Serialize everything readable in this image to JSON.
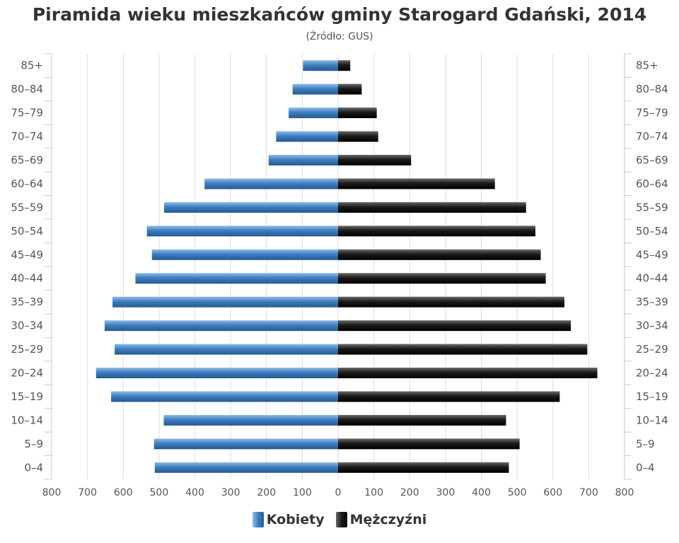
{
  "chart_data": {
    "type": "bar",
    "orientation": "horizontal-pyramid",
    "title": "Piramida wieku mieszkańców gminy Starogard Gdański, 2014",
    "subtitle": "(Źródło: GUS)",
    "categories": [
      "0–4",
      "5–9",
      "10–14",
      "15–19",
      "20–24",
      "25–29",
      "30–34",
      "35–39",
      "40–44",
      "45–49",
      "50–54",
      "55–59",
      "60–64",
      "65–69",
      "70–74",
      "75–79",
      "80–84",
      "85+"
    ],
    "series": [
      {
        "name": "Kobiety",
        "color": "#3e7fc1",
        "side": "left",
        "values": [
          512,
          514,
          487,
          634,
          676,
          624,
          652,
          630,
          566,
          520,
          534,
          486,
          373,
          194,
          173,
          138,
          127,
          98
        ]
      },
      {
        "name": "Mężczyźni",
        "color": "#1a1a1a",
        "side": "right",
        "values": [
          477,
          507,
          469,
          619,
          724,
          696,
          650,
          632,
          580,
          566,
          551,
          525,
          438,
          204,
          112,
          108,
          66,
          34
        ]
      }
    ],
    "xlim": [
      -800,
      800
    ],
    "x_ticks": [
      "800",
      "700",
      "600",
      "500",
      "400",
      "300",
      "200",
      "100",
      "0",
      "100",
      "200",
      "300",
      "400",
      "500",
      "600",
      "700",
      "800"
    ],
    "grid": true,
    "legend_position": "bottom-center"
  }
}
